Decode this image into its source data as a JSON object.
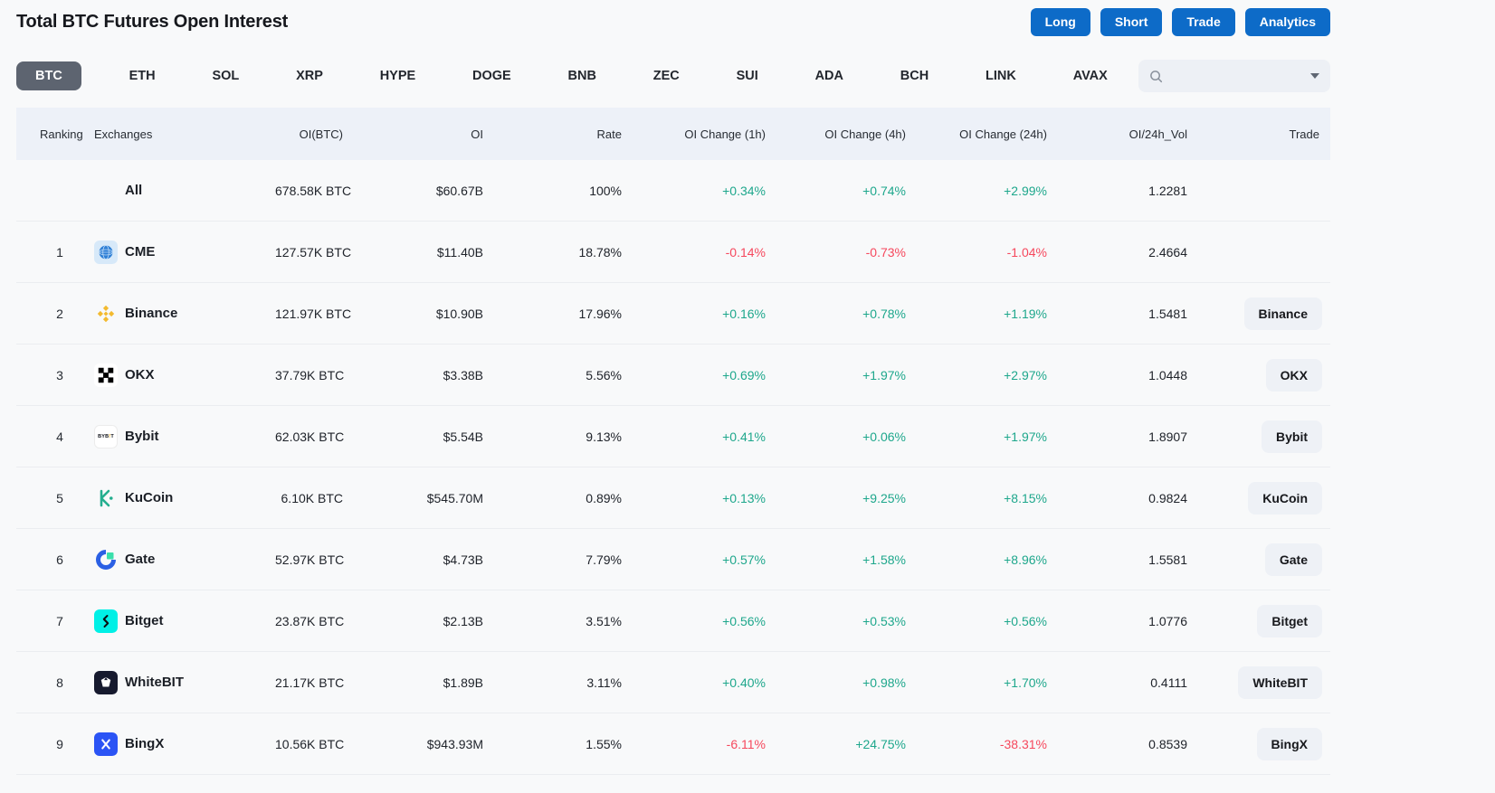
{
  "page": {
    "title": "Total BTC Futures Open Interest"
  },
  "actions": [
    "Long",
    "Short",
    "Trade",
    "Analytics"
  ],
  "tabs": {
    "items": [
      "BTC",
      "ETH",
      "SOL",
      "XRP",
      "HYPE",
      "DOGE",
      "BNB",
      "ZEC",
      "SUI",
      "ADA",
      "BCH",
      "LINK",
      "AVAX"
    ],
    "active": "BTC"
  },
  "search": {
    "placeholder": "",
    "value": ""
  },
  "table": {
    "headers": [
      "Ranking",
      "Exchanges",
      "OI(BTC)",
      "OI",
      "Rate",
      "OI Change (1h)",
      "OI Change (4h)",
      "OI Change (24h)",
      "OI/24h_Vol",
      "Trade"
    ],
    "rows": [
      {
        "ranking": "",
        "exchange": "All",
        "icon": "",
        "oi_btc": "678.58K BTC",
        "oi": "$60.67B",
        "rate": "100%",
        "chg_1h": "+0.34%",
        "chg_4h": "+0.74%",
        "chg_24h": "+2.99%",
        "oi_24h_vol": "1.2281",
        "trade": ""
      },
      {
        "ranking": "1",
        "exchange": "CME",
        "icon": "cme",
        "oi_btc": "127.57K BTC",
        "oi": "$11.40B",
        "rate": "18.78%",
        "chg_1h": "-0.14%",
        "chg_4h": "-0.73%",
        "chg_24h": "-1.04%",
        "oi_24h_vol": "2.4664",
        "trade": ""
      },
      {
        "ranking": "2",
        "exchange": "Binance",
        "icon": "binance",
        "oi_btc": "121.97K BTC",
        "oi": "$10.90B",
        "rate": "17.96%",
        "chg_1h": "+0.16%",
        "chg_4h": "+0.78%",
        "chg_24h": "+1.19%",
        "oi_24h_vol": "1.5481",
        "trade": "Binance"
      },
      {
        "ranking": "3",
        "exchange": "OKX",
        "icon": "okx",
        "oi_btc": "37.79K BTC",
        "oi": "$3.38B",
        "rate": "5.56%",
        "chg_1h": "+0.69%",
        "chg_4h": "+1.97%",
        "chg_24h": "+2.97%",
        "oi_24h_vol": "1.0448",
        "trade": "OKX"
      },
      {
        "ranking": "4",
        "exchange": "Bybit",
        "icon": "bybit",
        "oi_btc": "62.03K BTC",
        "oi": "$5.54B",
        "rate": "9.13%",
        "chg_1h": "+0.41%",
        "chg_4h": "+0.06%",
        "chg_24h": "+1.97%",
        "oi_24h_vol": "1.8907",
        "trade": "Bybit"
      },
      {
        "ranking": "5",
        "exchange": "KuCoin",
        "icon": "kucoin",
        "oi_btc": "6.10K BTC",
        "oi": "$545.70M",
        "rate": "0.89%",
        "chg_1h": "+0.13%",
        "chg_4h": "+9.25%",
        "chg_24h": "+8.15%",
        "oi_24h_vol": "0.9824",
        "trade": "KuCoin"
      },
      {
        "ranking": "6",
        "exchange": "Gate",
        "icon": "gate",
        "oi_btc": "52.97K BTC",
        "oi": "$4.73B",
        "rate": "7.79%",
        "chg_1h": "+0.57%",
        "chg_4h": "+1.58%",
        "chg_24h": "+8.96%",
        "oi_24h_vol": "1.5581",
        "trade": "Gate"
      },
      {
        "ranking": "7",
        "exchange": "Bitget",
        "icon": "bitget",
        "oi_btc": "23.87K BTC",
        "oi": "$2.13B",
        "rate": "3.51%",
        "chg_1h": "+0.56%",
        "chg_4h": "+0.53%",
        "chg_24h": "+0.56%",
        "oi_24h_vol": "1.0776",
        "trade": "Bitget"
      },
      {
        "ranking": "8",
        "exchange": "WhiteBIT",
        "icon": "whitebit",
        "oi_btc": "21.17K BTC",
        "oi": "$1.89B",
        "rate": "3.11%",
        "chg_1h": "+0.40%",
        "chg_4h": "+0.98%",
        "chg_24h": "+1.70%",
        "oi_24h_vol": "0.4111",
        "trade": "WhiteBIT"
      },
      {
        "ranking": "9",
        "exchange": "BingX",
        "icon": "bingx",
        "oi_btc": "10.56K BTC",
        "oi": "$943.93M",
        "rate": "1.55%",
        "chg_1h": "-6.11%",
        "chg_4h": "+24.75%",
        "chg_24h": "-38.31%",
        "oi_24h_vol": "0.8539",
        "trade": "BingX"
      }
    ]
  },
  "colors": {
    "positive": "#1EA78C",
    "negative": "#F6485D",
    "accent_blue": "#0D6BC8",
    "active_tab": "#5D6470",
    "header_bg": "#EDF1F8"
  }
}
